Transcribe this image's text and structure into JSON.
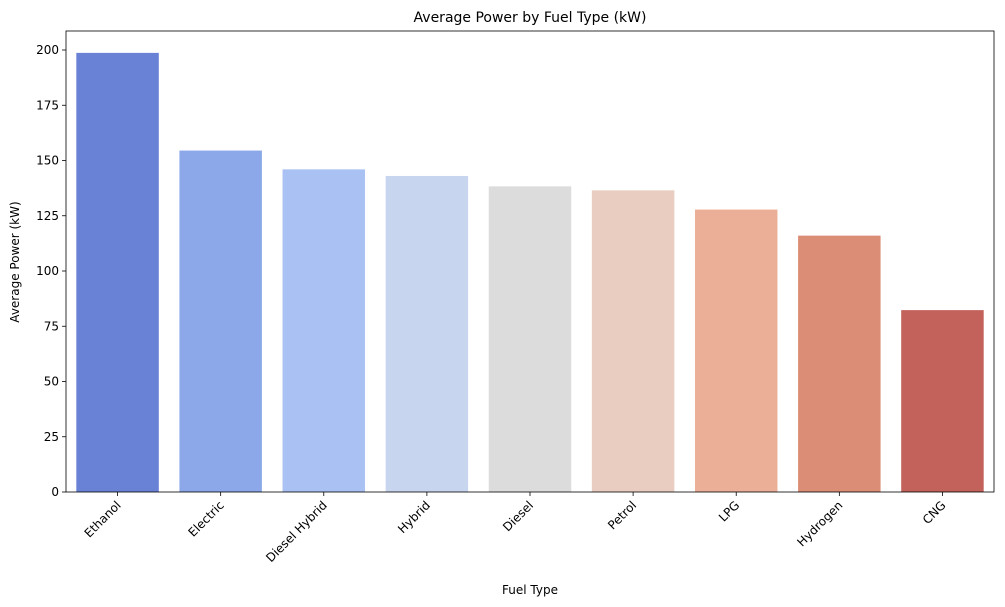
{
  "chart_data": {
    "type": "bar",
    "title": "Average Power by Fuel Type (kW)",
    "xlabel": "Fuel Type",
    "ylabel": "Average Power (kW)",
    "categories": [
      "Ethanol",
      "Electric",
      "Diesel Hybrid",
      "Hybrid",
      "Diesel",
      "Petrol",
      "LPG",
      "Hydrogen",
      "CNG"
    ],
    "values": [
      198.7,
      154.5,
      146.0,
      143.0,
      138.3,
      136.5,
      127.8,
      116.0,
      82.3
    ],
    "colors": [
      "#6a82d5",
      "#8ca8e9",
      "#aac2f3",
      "#c7d5ef",
      "#dcdcdc",
      "#e9cdc0",
      "#eaaf96",
      "#db8d76",
      "#c3625a"
    ],
    "yticks": [
      0,
      25,
      50,
      75,
      100,
      125,
      150,
      175,
      200
    ],
    "ylim": [
      0,
      208.6
    ],
    "grid": false,
    "legend": "none"
  }
}
